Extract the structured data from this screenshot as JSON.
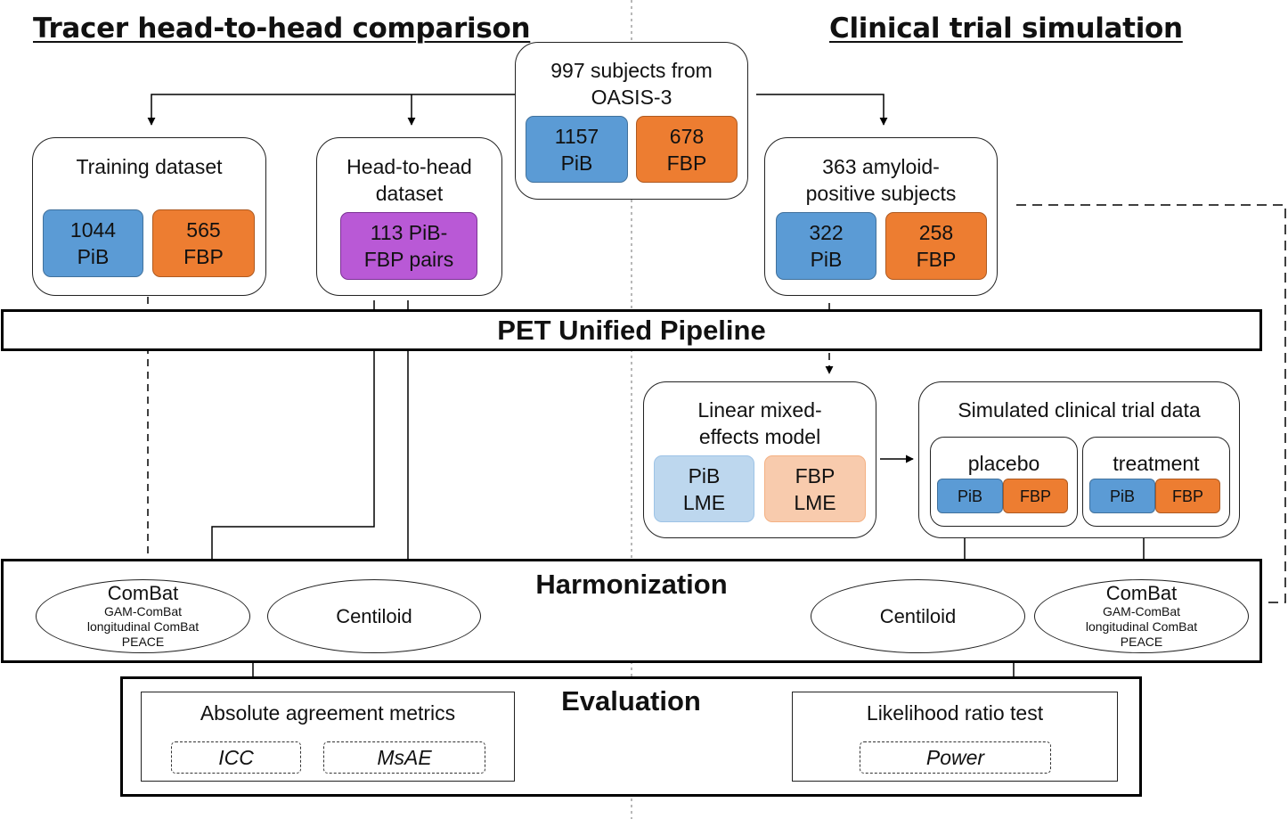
{
  "left_heading": "Tracer head-to-head comparison",
  "right_heading": "Clinical trial simulation",
  "source": {
    "title_line1": "997 subjects from",
    "title_line2": "OASIS-3",
    "pib": {
      "count": "1157",
      "label": "PiB"
    },
    "fbp": {
      "count": "678",
      "label": "FBP"
    }
  },
  "training": {
    "title": "Training dataset",
    "pib": {
      "count": "1044",
      "label": "PiB"
    },
    "fbp": {
      "count": "565",
      "label": "FBP"
    }
  },
  "head_to_head": {
    "title_line1": "Head-to-head",
    "title_line2": "dataset",
    "pairs_line1": "113 PiB-",
    "pairs_line2": "FBP pairs"
  },
  "amyloid": {
    "title_line1": "363 amyloid-",
    "title_line2": "positive subjects",
    "pib": {
      "count": "322",
      "label": "PiB"
    },
    "fbp": {
      "count": "258",
      "label": "FBP"
    }
  },
  "pipeline_label": "PET Unified Pipeline",
  "lme": {
    "title_line1": "Linear mixed-",
    "title_line2": "effects model",
    "pib_line1": "PiB",
    "pib_line2": "LME",
    "fbp_line1": "FBP",
    "fbp_line2": "LME"
  },
  "trial": {
    "title": "Simulated clinical trial data",
    "placebo": {
      "title": "placebo",
      "pib": "PiB",
      "fbp": "FBP"
    },
    "treatment": {
      "title": "treatment",
      "pib": "PiB",
      "fbp": "FBP"
    }
  },
  "harmonization": {
    "label": "Harmonization",
    "combat_left": {
      "title": "ComBat",
      "sub1": "GAM-ComBat",
      "sub2": "longitudinal ComBat",
      "sub3": "PEACE"
    },
    "centiloid_left": "Centiloid",
    "centiloid_right": "Centiloid",
    "combat_right": {
      "title": "ComBat",
      "sub1": "GAM-ComBat",
      "sub2": "longitudinal ComBat",
      "sub3": "PEACE"
    }
  },
  "evaluation": {
    "label": "Evaluation",
    "agreement": {
      "title": "Absolute agreement metrics",
      "m1": "ICC",
      "m2": "MsAE"
    },
    "lrt": {
      "title": "Likelihood ratio test",
      "m1": "Power"
    }
  },
  "colors": {
    "pib": "#5b9bd5",
    "fbp": "#ed7d31",
    "pair": "#b959d6",
    "pib_light": "#bdd7ee",
    "fbp_light": "#f8cbad"
  }
}
